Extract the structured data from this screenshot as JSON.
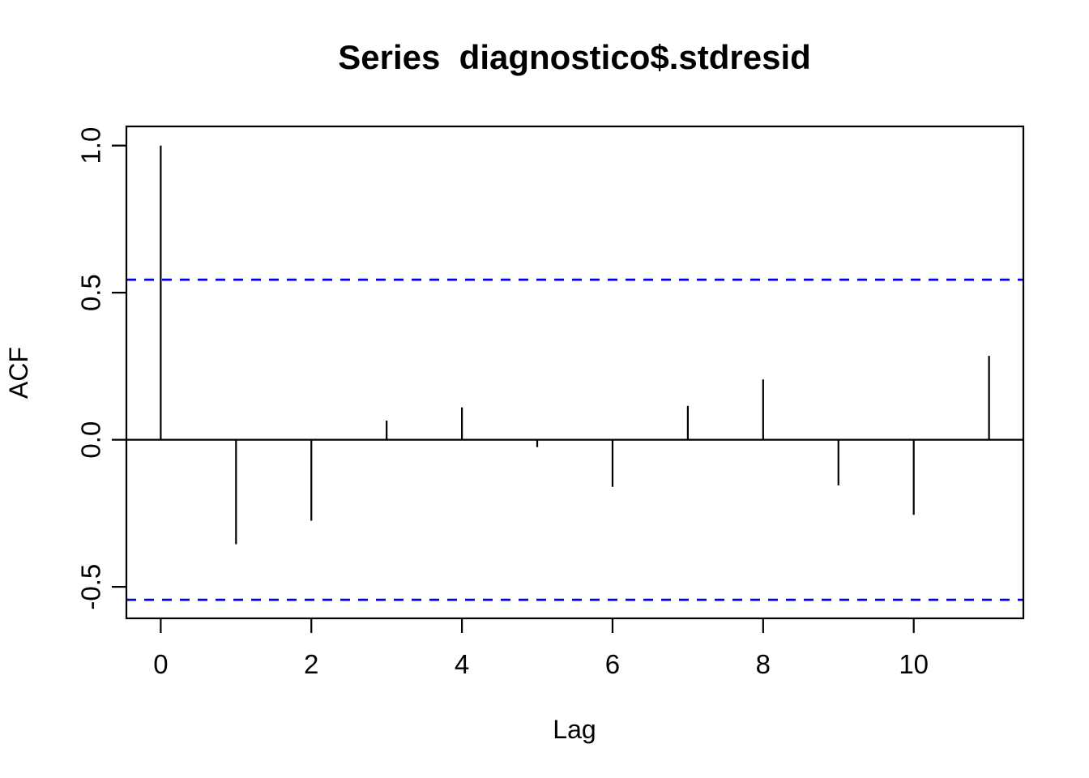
{
  "page": {
    "background": "#ffffff"
  },
  "chart_data": {
    "type": "bar",
    "variant": "acf-stem-plot",
    "title": "Series  diagnostico$.stdresid",
    "xlabel": "Lag",
    "ylabel": "ACF",
    "x": [
      0,
      1,
      2,
      3,
      4,
      5,
      6,
      7,
      8,
      9,
      10,
      11
    ],
    "values": [
      1.0,
      -0.355,
      -0.275,
      0.065,
      0.11,
      -0.025,
      -0.16,
      0.115,
      0.205,
      -0.155,
      -0.255,
      0.285
    ],
    "confidence_bounds": {
      "upper": 0.544,
      "lower": -0.544,
      "line_style": "dashed",
      "color": "#0000ee"
    },
    "xlim": [
      -0.456,
      11.456
    ],
    "ylim": [
      -0.607,
      1.065
    ],
    "xticks": [
      0,
      2,
      4,
      6,
      8,
      10
    ],
    "xtick_labels": [
      "0",
      "2",
      "4",
      "6",
      "8",
      "10"
    ],
    "yticks": [
      1.0,
      0.5,
      0.0,
      -0.5
    ],
    "ytick_labels": [
      "1.0",
      "0.5",
      "0.0",
      "-0.5"
    ],
    "grid": false,
    "legend_position": "none",
    "zero_line": 0.0,
    "bar_color": "#000000",
    "axis_color": "#000000",
    "background_color": "#ffffff"
  }
}
